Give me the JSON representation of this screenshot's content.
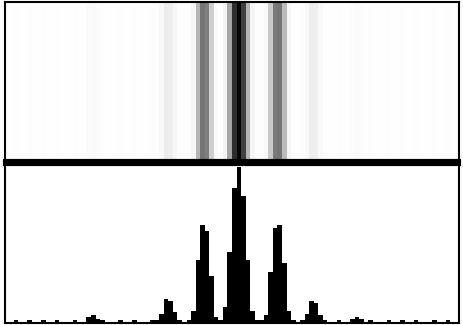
{
  "chart_data": [
    {
      "type": "heatmap",
      "x_edges": [
        0,
        1,
        2,
        3,
        4,
        5,
        6,
        7,
        8,
        9,
        10,
        11,
        12,
        13,
        14,
        15,
        16,
        17,
        18,
        19,
        20,
        21,
        22,
        23,
        24,
        25,
        26,
        27,
        28,
        29,
        30,
        31,
        32,
        33,
        34,
        35,
        36,
        37,
        38,
        39,
        40,
        41,
        42,
        43,
        44,
        45,
        46,
        47,
        48,
        49,
        50,
        51,
        52,
        53,
        54,
        55,
        56,
        57,
        58,
        59,
        60,
        61,
        62,
        63,
        64,
        65,
        66,
        67,
        68,
        69,
        70,
        71,
        72,
        73,
        74,
        75,
        76,
        77,
        78,
        79,
        80,
        81,
        82,
        83,
        84,
        85,
        86,
        87,
        88,
        89,
        90,
        91,
        92,
        93,
        94,
        95,
        96,
        97,
        98,
        99,
        100
      ],
      "cells": [
        [
          1,
          1,
          2,
          1,
          1,
          2,
          1,
          1,
          2,
          1,
          1,
          2,
          1,
          1,
          1,
          2,
          1,
          1,
          4,
          5,
          3,
          2,
          1,
          1,
          1,
          2,
          1,
          1,
          2,
          1,
          1,
          1,
          2,
          2,
          6,
          15,
          14,
          7,
          2,
          1,
          2,
          8,
          40,
          62,
          58,
          30,
          4,
          2,
          10,
          45,
          85,
          98,
          80,
          40,
          8,
          2,
          2,
          5,
          32,
          60,
          62,
          38,
          8,
          2,
          1,
          2,
          6,
          14,
          13,
          5,
          2,
          1,
          1,
          2,
          1,
          1,
          3,
          4,
          3,
          1,
          2,
          1,
          1,
          1,
          2,
          1,
          1,
          2,
          1,
          1,
          2,
          1,
          1,
          1,
          2,
          1,
          1,
          2,
          1,
          1
        ]
      ],
      "vlim": [
        0,
        100
      ],
      "xlim": [
        0,
        100
      ],
      "tick_labels": false
    },
    {
      "type": "histogram",
      "bins": [
        0,
        1,
        2,
        3,
        4,
        5,
        6,
        7,
        8,
        9,
        10,
        11,
        12,
        13,
        14,
        15,
        16,
        17,
        18,
        19,
        20,
        21,
        22,
        23,
        24,
        25,
        26,
        27,
        28,
        29,
        30,
        31,
        32,
        33,
        34,
        35,
        36,
        37,
        38,
        39,
        40,
        41,
        42,
        43,
        44,
        45,
        46,
        47,
        48,
        49,
        50,
        51,
        52,
        53,
        54,
        55,
        56,
        57,
        58,
        59,
        60,
        61,
        62,
        63,
        64,
        65,
        66,
        67,
        68,
        69,
        70,
        71,
        72,
        73,
        74,
        75,
        76,
        77,
        78,
        79,
        80,
        81,
        82,
        83,
        84,
        85,
        86,
        87,
        88,
        89,
        90,
        91,
        92,
        93,
        94,
        95,
        96,
        97,
        98,
        99,
        100
      ],
      "values": [
        1,
        1,
        2,
        1,
        1,
        2,
        1,
        1,
        2,
        1,
        1,
        2,
        1,
        1,
        1,
        2,
        1,
        1,
        4,
        5,
        3,
        2,
        1,
        1,
        1,
        2,
        1,
        1,
        2,
        1,
        1,
        1,
        2,
        2,
        6,
        15,
        14,
        7,
        2,
        1,
        2,
        8,
        40,
        62,
        58,
        30,
        4,
        2,
        10,
        45,
        85,
        98,
        80,
        40,
        8,
        2,
        2,
        5,
        32,
        60,
        62,
        38,
        8,
        2,
        1,
        2,
        6,
        14,
        13,
        5,
        2,
        1,
        1,
        2,
        1,
        1,
        3,
        4,
        3,
        1,
        2,
        1,
        1,
        1,
        2,
        1,
        1,
        2,
        1,
        1,
        2,
        1,
        1,
        1,
        2,
        1,
        1,
        2,
        1,
        1
      ],
      "color": "#000000",
      "xlim": [
        0,
        100
      ],
      "ylim": [
        0,
        100
      ],
      "tick_labels": false
    }
  ]
}
